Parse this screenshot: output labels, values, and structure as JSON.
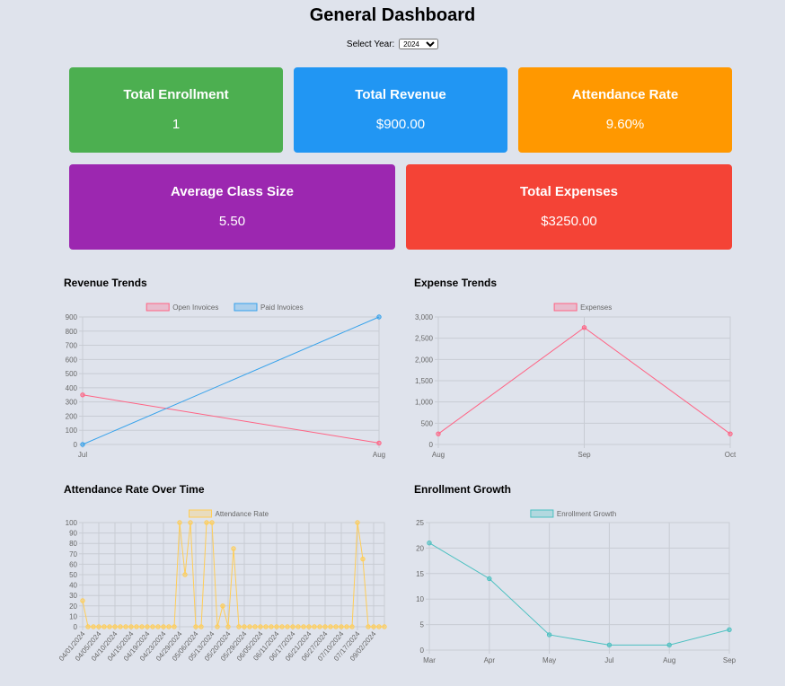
{
  "title": "General Dashboard",
  "year_select": {
    "label": "Select Year:",
    "value": "2024"
  },
  "cards": [
    {
      "label": "Total Enrollment",
      "value": "1",
      "color": "#4caf50"
    },
    {
      "label": "Total Revenue",
      "value": "$900.00",
      "color": "#2196f3"
    },
    {
      "label": "Attendance Rate",
      "value": "9.60%",
      "color": "#ff9800"
    },
    {
      "label": "Average Class Size",
      "value": "5.50",
      "color": "#9c27b0"
    },
    {
      "label": "Total Expenses",
      "value": "$3250.00",
      "color": "#f44336"
    }
  ],
  "charts": [
    {
      "type": "line",
      "title": "Revenue Trends",
      "categories": [
        "Jul",
        "Aug"
      ],
      "series": [
        {
          "name": "Open Invoices",
          "color": "#ff6384",
          "values": [
            350,
            10
          ]
        },
        {
          "name": "Paid Invoices",
          "color": "#36a2eb",
          "values": [
            0,
            900
          ]
        }
      ],
      "ylim": [
        0,
        900
      ],
      "yticks": [
        0,
        100,
        200,
        300,
        400,
        500,
        600,
        700,
        800,
        900
      ],
      "grid": true
    },
    {
      "type": "line",
      "title": "Expense Trends",
      "categories": [
        "Aug",
        "Sep",
        "Oct"
      ],
      "series": [
        {
          "name": "Expenses",
          "color": "#ff6384",
          "values": [
            250,
            2750,
            250
          ]
        }
      ],
      "ylim": [
        0,
        3000
      ],
      "yticks": [
        0,
        500,
        {
          "value": 1000,
          "label": "1,000"
        },
        {
          "value": 1500,
          "label": "1,500"
        },
        {
          "value": 2000,
          "label": "2,000"
        },
        {
          "value": 2500,
          "label": "2,500"
        },
        {
          "value": 3000,
          "label": "3,000"
        }
      ],
      "grid": true
    },
    {
      "type": "line",
      "title": "Attendance Rate Over Time",
      "categories": [
        "04/01/2024",
        null,
        null,
        "04/05/2024",
        null,
        null,
        "04/10/2024",
        null,
        null,
        "04/15/2024",
        null,
        null,
        "04/19/2024",
        null,
        null,
        "04/23/2024",
        null,
        null,
        "04/29/2024",
        null,
        null,
        "05/06/2024",
        null,
        null,
        "05/13/2024",
        null,
        null,
        "05/20/2024",
        null,
        null,
        "05/29/2024",
        null,
        null,
        "06/05/2024",
        null,
        null,
        "06/11/2024",
        null,
        null,
        "06/17/2024",
        null,
        null,
        "06/21/2024",
        null,
        null,
        "06/27/2024",
        null,
        null,
        "07/10/2024",
        null,
        null,
        "07/17/2024",
        null,
        null,
        "09/02/2024",
        null,
        null
      ],
      "series": [
        {
          "name": "Attendance Rate",
          "color": "#ffcd56",
          "values": [
            25,
            0,
            0,
            0,
            0,
            0,
            0,
            0,
            0,
            0,
            0,
            0,
            0,
            0,
            0,
            0,
            0,
            0,
            100,
            50,
            100,
            0,
            0,
            100,
            100,
            0,
            20,
            0,
            75,
            0,
            0,
            0,
            0,
            0,
            0,
            0,
            0,
            0,
            0,
            0,
            0,
            0,
            0,
            0,
            0,
            0,
            0,
            0,
            0,
            0,
            0,
            100,
            65,
            0,
            0,
            0,
            0
          ]
        }
      ],
      "ylim": [
        0,
        100
      ],
      "yticks": [
        0,
        10,
        20,
        30,
        40,
        50,
        60,
        70,
        80,
        90,
        100
      ],
      "grid": true
    },
    {
      "type": "line",
      "title": "Enrollment Growth",
      "categories": [
        "Mar",
        "Apr",
        "May",
        "Jul",
        "Aug",
        "Sep"
      ],
      "series": [
        {
          "name": "Enrollment Growth",
          "color": "#4bc0c0",
          "values": [
            21,
            14,
            3,
            1,
            1,
            4
          ]
        }
      ],
      "ylim": [
        0,
        25
      ],
      "yticks": [
        0,
        5,
        10,
        15,
        20,
        25
      ],
      "grid": true
    }
  ]
}
